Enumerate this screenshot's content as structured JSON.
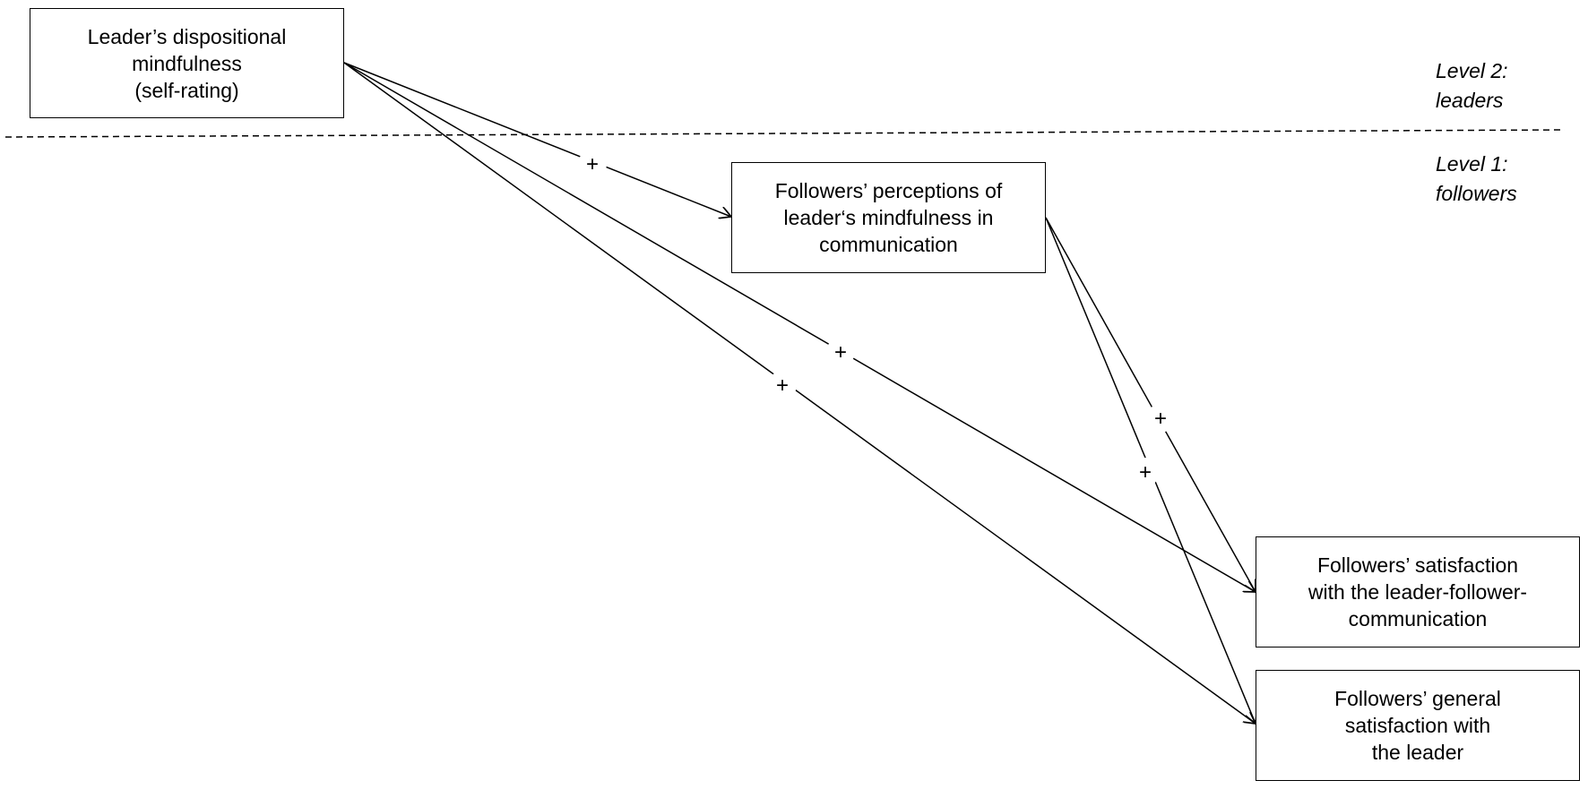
{
  "nodes": {
    "leader_mindfulness": {
      "lines": [
        "Leader’s dispositional",
        "mindfulness",
        "(self-rating)"
      ]
    },
    "followers_perceptions": {
      "lines": [
        "Followers’ perceptions of",
        "leader‘s mindfulness in",
        "communication"
      ]
    },
    "satisfaction_communication": {
      "lines": [
        "Followers’ satisfaction",
        "with the leader-follower-",
        "communication"
      ]
    },
    "general_satisfaction": {
      "lines": [
        "Followers’ general",
        "satisfaction with",
        "the leader"
      ]
    }
  },
  "levels": {
    "level2": {
      "line1": "Level 2:",
      "line2": "leaders"
    },
    "level1": {
      "line1": "Level 1:",
      "line2": "followers"
    }
  },
  "edges": [
    {
      "from": "leader_mindfulness",
      "to": "followers_perceptions",
      "sign": "+"
    },
    {
      "from": "leader_mindfulness",
      "to": "satisfaction_communication",
      "sign": "+"
    },
    {
      "from": "leader_mindfulness",
      "to": "general_satisfaction",
      "sign": "+"
    },
    {
      "from": "followers_perceptions",
      "to": "satisfaction_communication",
      "sign": "+"
    },
    {
      "from": "followers_perceptions",
      "to": "general_satisfaction",
      "sign": "+"
    }
  ]
}
